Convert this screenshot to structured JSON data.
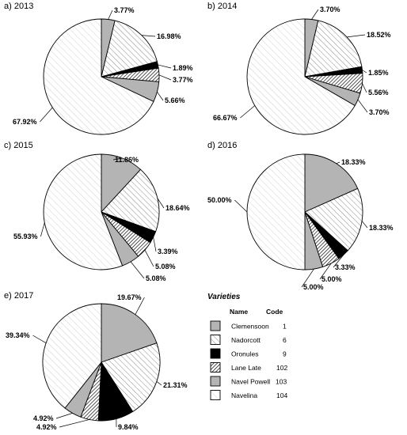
{
  "chart_data": [
    {
      "type": "pie",
      "title": "a) 2013",
      "labels": [
        "Clemensoon",
        "Nadorcott",
        "Oronules",
        "Lane Late",
        "Navel Powell",
        "Navelina"
      ],
      "values": [
        3.77,
        16.98,
        1.89,
        3.77,
        5.66,
        67.92
      ],
      "value_labels": [
        "3.77%",
        "16.98%",
        "1.89%",
        "3.77%",
        "5.66%",
        "67.92%"
      ]
    },
    {
      "type": "pie",
      "title": "b) 2014",
      "labels": [
        "Clemensoon",
        "Nadorcott",
        "Oronules",
        "Lane Late",
        "Navel Powell",
        "Navelina"
      ],
      "values": [
        3.7,
        18.52,
        1.85,
        5.56,
        3.7,
        66.67
      ],
      "value_labels": [
        "3.70%",
        "18.52%",
        "1.85%",
        "5.56%",
        "3.70%",
        "66.67%"
      ]
    },
    {
      "type": "pie",
      "title": "c) 2015",
      "labels": [
        "Clemensoon",
        "Nadorcott",
        "Oronules",
        "Lane Late",
        "Navel Powell",
        "Navelina"
      ],
      "values": [
        11.86,
        18.64,
        3.39,
        5.08,
        5.08,
        55.93
      ],
      "value_labels": [
        "11.86%",
        "18.64%",
        "3.39%",
        "5.08%",
        "5.08%",
        "55.93%"
      ]
    },
    {
      "type": "pie",
      "title": "d) 2016",
      "labels": [
        "Clemensoon",
        "Nadorcott",
        "Oronules",
        "Lane Late",
        "Navel Powell",
        "Navelina"
      ],
      "values": [
        18.33,
        18.33,
        3.33,
        5.0,
        5.0,
        50.0
      ],
      "value_labels": [
        "18.33%",
        "18.33%",
        "3.33%",
        "5.00%",
        "5.00%",
        "50.00%"
      ]
    },
    {
      "type": "pie",
      "title": "e) 2017",
      "labels": [
        "Clemensoon",
        "Nadorcott",
        "Oronules",
        "Lane Late",
        "Navel Powell",
        "Navelina"
      ],
      "values": [
        19.67,
        21.31,
        9.84,
        4.92,
        4.92,
        39.34
      ],
      "value_labels": [
        "19.67%",
        "21.31%",
        "9.84%",
        "4.92%",
        "4.92%",
        "39.34%"
      ]
    }
  ],
  "legend": {
    "title": "Varieties",
    "name_header": "Name",
    "code_header": "Code",
    "items": [
      {
        "name": "Clemensoon",
        "code": "1",
        "fill": "solid-light-gray",
        "color": "#b4b4b4"
      },
      {
        "name": "Nadorcott",
        "code": "6",
        "fill": "diagonal-hatch",
        "color": "#9a9a9a"
      },
      {
        "name": "Oronules",
        "code": "9",
        "fill": "solid-black",
        "color": "#000000"
      },
      {
        "name": "Lane Late",
        "code": "102",
        "fill": "dense-diagonal-hatch",
        "color": "#000000"
      },
      {
        "name": "Navel Powell",
        "code": "103",
        "fill": "solid-light-gray",
        "color": "#b4b4b4"
      },
      {
        "name": "Navelina",
        "code": "104",
        "fill": "sparse-diagonal-hatch",
        "color": "#b0b0b0"
      }
    ]
  }
}
